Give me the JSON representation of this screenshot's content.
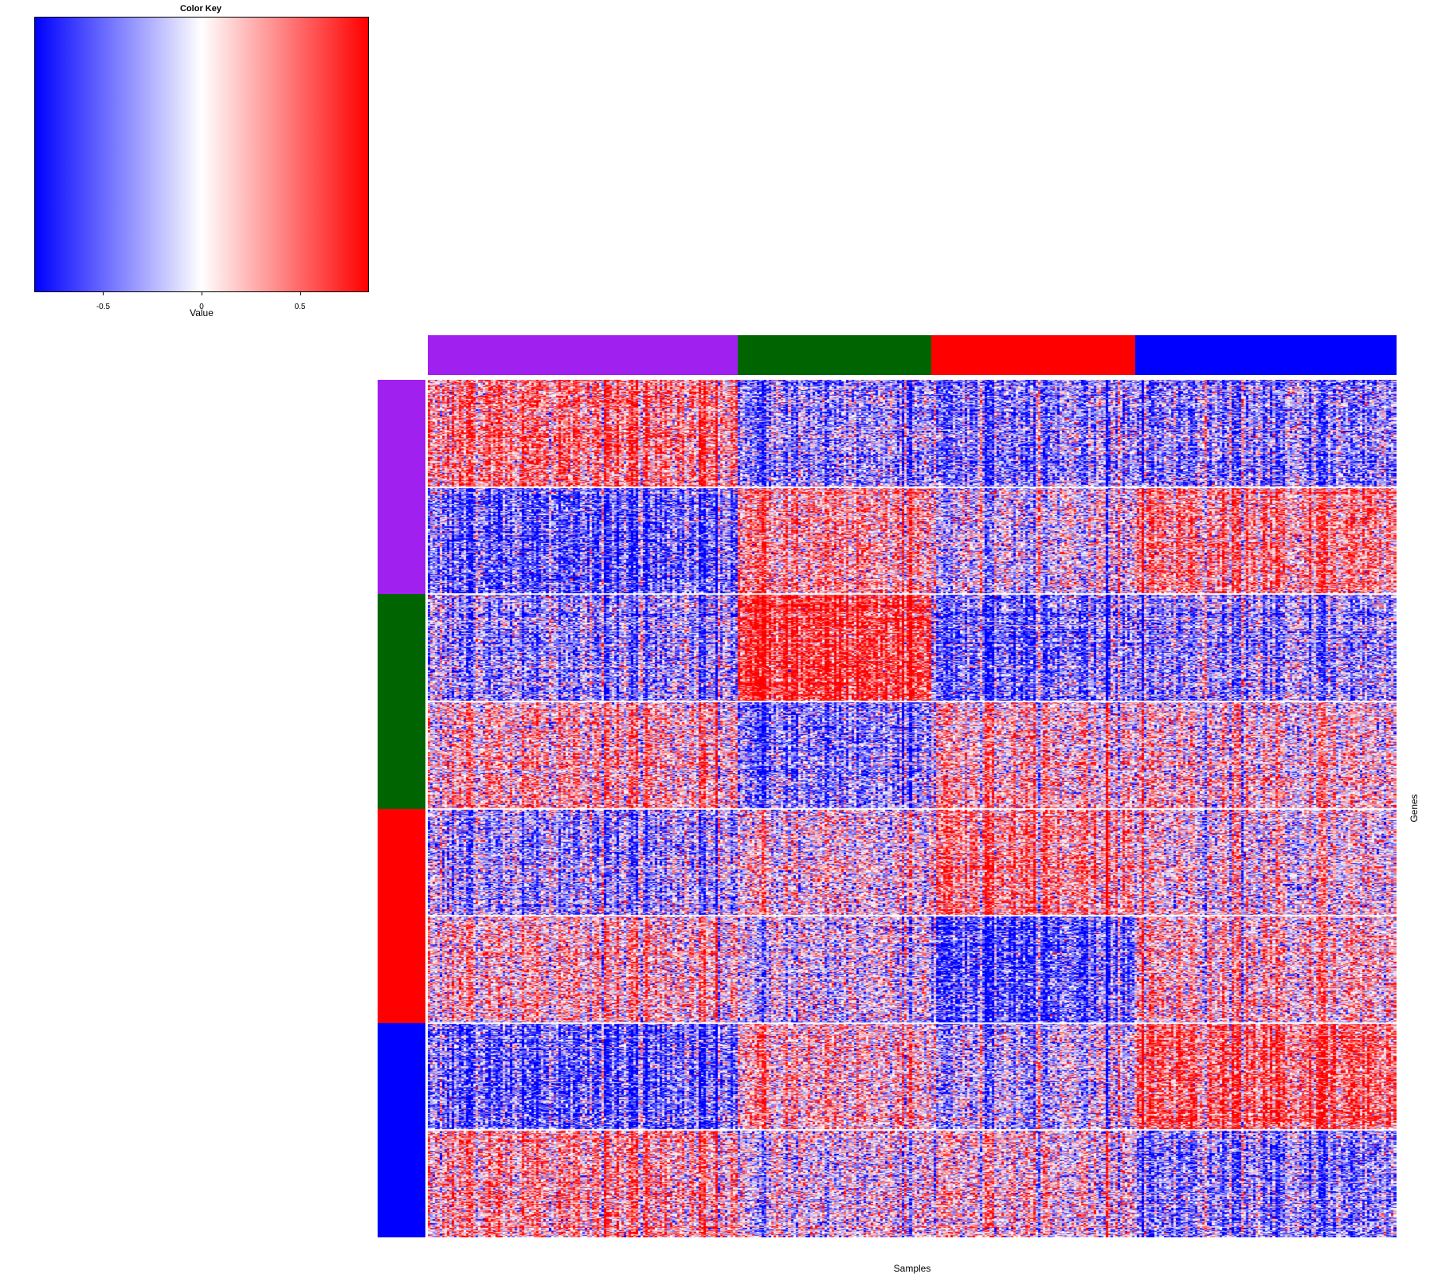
{
  "chart_data": {
    "type": "heatmap",
    "title": "",
    "xlabel": "Samples",
    "ylabel": "Genes",
    "color_key": {
      "title": "Color Key",
      "xlabel": "Value",
      "range": [
        -0.85,
        0.85
      ],
      "ticks": [
        -0.5,
        0,
        0.5
      ],
      "tick_labels": [
        "-0.5",
        "0",
        "0.5"
      ],
      "colors": [
        "#0000ff",
        "#ffffff",
        "#ff0000"
      ]
    },
    "column_groups": [
      {
        "name": "group-purple",
        "color": "#a020f0",
        "relative_size": 0.32
      },
      {
        "name": "group-darkgreen",
        "color": "#006400",
        "relative_size": 0.2
      },
      {
        "name": "group-red",
        "color": "#ff0000",
        "relative_size": 0.21
      },
      {
        "name": "group-blue",
        "color": "#0000ff",
        "relative_size": 0.27
      }
    ],
    "row_groups": [
      {
        "name": "group-purple",
        "color": "#a020f0",
        "relative_size": 0.25
      },
      {
        "name": "group-darkgreen",
        "color": "#006400",
        "relative_size": 0.25
      },
      {
        "name": "group-red",
        "color": "#ff0000",
        "relative_size": 0.25
      },
      {
        "name": "group-blue",
        "color": "#0000ff",
        "relative_size": 0.25
      }
    ],
    "block_mean_values": [
      [
        0.45,
        -0.35,
        -0.4,
        -0.4
      ],
      [
        -0.55,
        0.35,
        -0.1,
        0.4
      ],
      [
        -0.35,
        0.75,
        -0.5,
        -0.35
      ],
      [
        0.2,
        -0.45,
        0.15,
        0.1
      ],
      [
        -0.3,
        0.05,
        0.4,
        0.05
      ],
      [
        0.2,
        -0.1,
        -0.6,
        0.2
      ],
      [
        -0.55,
        0.2,
        -0.2,
        0.55
      ],
      [
        0.3,
        -0.05,
        0.1,
        -0.4
      ]
    ]
  }
}
